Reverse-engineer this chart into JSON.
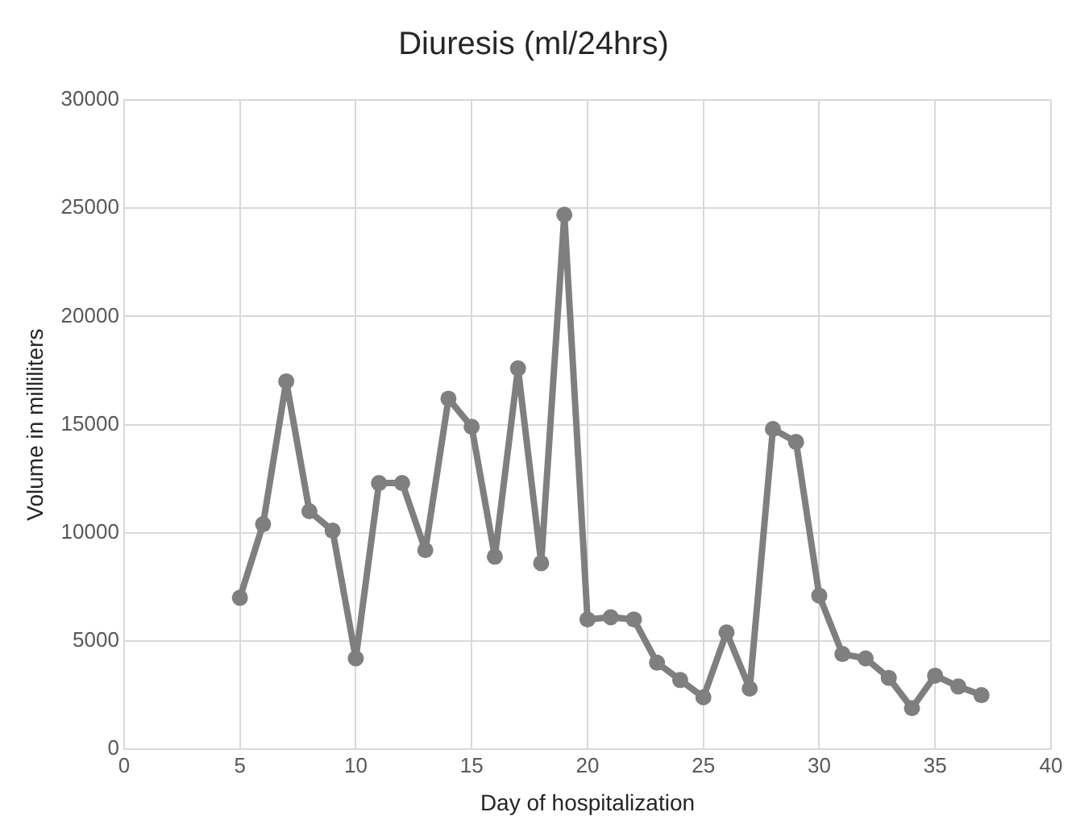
{
  "chart_data": {
    "type": "line",
    "title": "Diuresis (ml/24hrs)",
    "xlabel": "Day of hospitalization",
    "ylabel": "Volume in milliliters",
    "x": [
      5,
      6,
      7,
      8,
      9,
      10,
      11,
      12,
      13,
      14,
      15,
      16,
      17,
      18,
      19,
      20,
      21,
      22,
      23,
      24,
      25,
      26,
      27,
      28,
      29,
      30,
      31,
      32,
      33,
      34,
      35,
      36,
      37
    ],
    "series": [
      {
        "color": "#7f7f7f",
        "values": [
          7000,
          10400,
          17000,
          11000,
          10100,
          4200,
          12300,
          12300,
          9200,
          16200,
          14900,
          8900,
          17600,
          8600,
          24700,
          6000,
          6100,
          6000,
          4000,
          3200,
          2400,
          5400,
          2800,
          14800,
          14200,
          7100,
          4400,
          4200,
          3300,
          1900,
          3400,
          2900,
          2500
        ]
      }
    ],
    "xlim": [
      0,
      40
    ],
    "xticks": [
      0,
      5,
      10,
      15,
      20,
      25,
      30,
      35,
      40
    ],
    "ylim": [
      0,
      30000
    ],
    "yticks": [
      0,
      5000,
      10000,
      15000,
      20000,
      25000,
      30000
    ],
    "grid": true,
    "legend": false,
    "marker": "circle",
    "line_style": "solid"
  }
}
